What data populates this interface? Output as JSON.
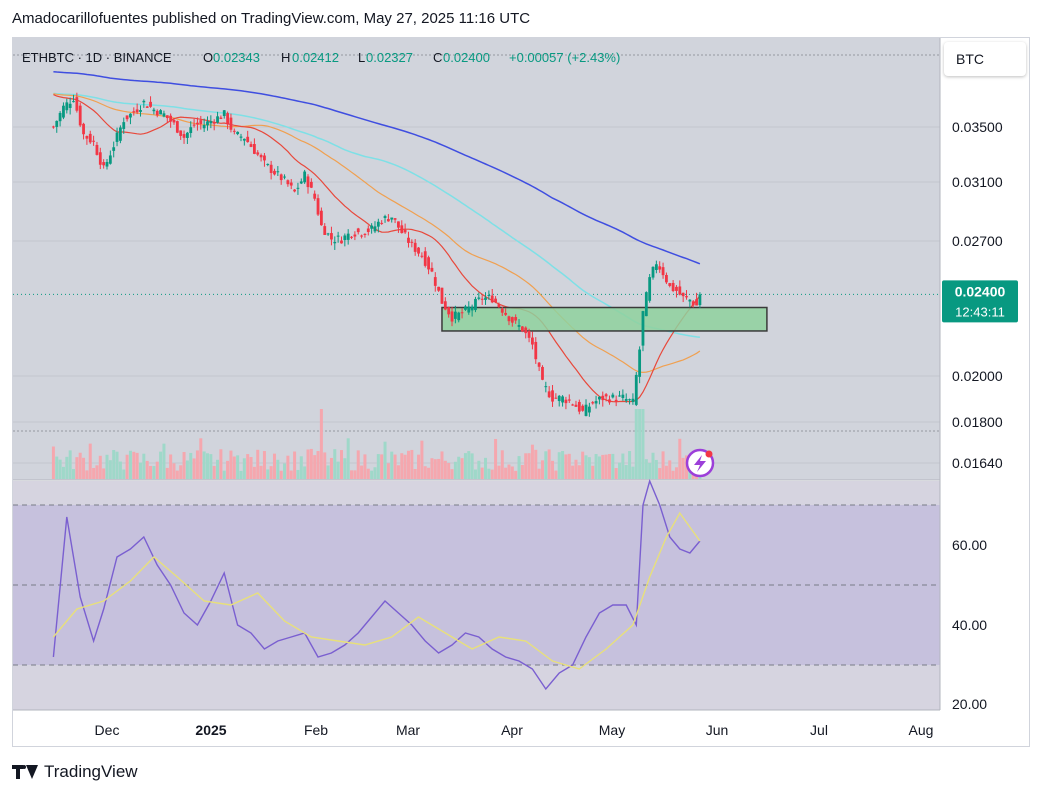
{
  "header": {
    "text": "Amadocarillofuentes published on TradingView.com, May 27, 2025 11:16 UTC"
  },
  "legend": {
    "symbol": "ETHBTC · 1D · BINANCE",
    "o_label": "O",
    "o_value": "0.02343",
    "h_label": "H",
    "h_value": "0.02412",
    "l_label": "L",
    "l_value": "0.02327",
    "c_label": "C",
    "c_value": "0.02400",
    "change": "+0.00057 (+2.43%)"
  },
  "currency_button": "BTC",
  "footer": {
    "brand": "TradingView"
  },
  "colors": {
    "bg_upper": "#d1d4dc",
    "bg_rsi": "#cfcde0",
    "rsi_band": "#c6c1dd",
    "up": "#089981",
    "down": "#f23645",
    "ma_red": "#e8483b",
    "ma_orange": "#f0a050",
    "ma_cyan": "#7ee0e6",
    "ma_blue": "#3f4ee0",
    "rsi": "#7a5fd0",
    "rsi_ma": "#e8e07a",
    "zone_fill": "#8fd19e",
    "price_label": "#089981"
  },
  "chart_data": [
    {
      "type": "candlestick",
      "title": "ETHBTC · 1D · BINANCE",
      "y_ticks": [
        "0.03500",
        "0.03100",
        "0.02700",
        "0.02000",
        "0.01800",
        "0.01640"
      ],
      "ylim": [
        0.0155,
        0.0395
      ],
      "x_ticks": [
        "Dec",
        "2025",
        "Feb",
        "Mar",
        "Apr",
        "May",
        "Jun",
        "Jul",
        "Aug"
      ],
      "last_price": "0.02400",
      "countdown": "12:43:11",
      "last_ohlc": {
        "open": 0.02343,
        "high": 0.02412,
        "low": 0.02327,
        "close": 0.024
      },
      "support_zone": {
        "top": 0.0233,
        "bottom": 0.0221,
        "start": "2025-03-11",
        "end": "2025-06-16"
      },
      "closes": [
        {
          "date": "2024-11-15",
          "close": 0.035
        },
        {
          "date": "2024-11-18",
          "close": 0.0366
        },
        {
          "date": "2024-11-21",
          "close": 0.0374
        },
        {
          "date": "2024-11-24",
          "close": 0.0344
        },
        {
          "date": "2024-11-27",
          "close": 0.0338
        },
        {
          "date": "2024-11-30",
          "close": 0.0318
        },
        {
          "date": "2024-12-03",
          "close": 0.0336
        },
        {
          "date": "2024-12-06",
          "close": 0.0356
        },
        {
          "date": "2024-12-09",
          "close": 0.0362
        },
        {
          "date": "2024-12-12",
          "close": 0.037
        },
        {
          "date": "2024-12-15",
          "close": 0.0364
        },
        {
          "date": "2024-12-18",
          "close": 0.036
        },
        {
          "date": "2024-12-21",
          "close": 0.0352
        },
        {
          "date": "2024-12-24",
          "close": 0.0342
        },
        {
          "date": "2024-12-27",
          "close": 0.0352
        },
        {
          "date": "2024-12-30",
          "close": 0.0352
        },
        {
          "date": "2025-01-02",
          "close": 0.0356
        },
        {
          "date": "2025-01-05",
          "close": 0.036
        },
        {
          "date": "2025-01-08",
          "close": 0.0344
        },
        {
          "date": "2025-01-11",
          "close": 0.0342
        },
        {
          "date": "2025-01-14",
          "close": 0.0332
        },
        {
          "date": "2025-01-17",
          "close": 0.0322
        },
        {
          "date": "2025-01-20",
          "close": 0.0316
        },
        {
          "date": "2025-01-23",
          "close": 0.031
        },
        {
          "date": "2025-01-26",
          "close": 0.0302
        },
        {
          "date": "2025-01-29",
          "close": 0.0314
        },
        {
          "date": "2025-02-01",
          "close": 0.0298
        },
        {
          "date": "2025-02-03",
          "close": 0.028
        },
        {
          "date": "2025-02-06",
          "close": 0.0272
        },
        {
          "date": "2025-02-09",
          "close": 0.0272
        },
        {
          "date": "2025-02-12",
          "close": 0.0276
        },
        {
          "date": "2025-02-15",
          "close": 0.0276
        },
        {
          "date": "2025-02-18",
          "close": 0.0278
        },
        {
          "date": "2025-02-21",
          "close": 0.0284
        },
        {
          "date": "2025-02-24",
          "close": 0.0286
        },
        {
          "date": "2025-02-27",
          "close": 0.0276
        },
        {
          "date": "2025-03-02",
          "close": 0.0268
        },
        {
          "date": "2025-03-05",
          "close": 0.0262
        },
        {
          "date": "2025-03-08",
          "close": 0.0252
        },
        {
          "date": "2025-03-11",
          "close": 0.0236
        },
        {
          "date": "2025-03-14",
          "close": 0.0228
        },
        {
          "date": "2025-03-17",
          "close": 0.023
        },
        {
          "date": "2025-03-20",
          "close": 0.0234
        },
        {
          "date": "2025-03-23",
          "close": 0.0238
        },
        {
          "date": "2025-03-26",
          "close": 0.0238
        },
        {
          "date": "2025-03-29",
          "close": 0.0232
        },
        {
          "date": "2025-04-01",
          "close": 0.0226
        },
        {
          "date": "2025-04-04",
          "close": 0.0222
        },
        {
          "date": "2025-04-07",
          "close": 0.0214
        },
        {
          "date": "2025-04-10",
          "close": 0.0196
        },
        {
          "date": "2025-04-13",
          "close": 0.019
        },
        {
          "date": "2025-04-16",
          "close": 0.019
        },
        {
          "date": "2025-04-19",
          "close": 0.0188
        },
        {
          "date": "2025-04-22",
          "close": 0.0184
        },
        {
          "date": "2025-04-25",
          "close": 0.0188
        },
        {
          "date": "2025-04-28",
          "close": 0.019
        },
        {
          "date": "2025-05-01",
          "close": 0.019
        },
        {
          "date": "2025-05-04",
          "close": 0.019
        },
        {
          "date": "2025-05-07",
          "close": 0.0188
        },
        {
          "date": "2025-05-09",
          "close": 0.0212
        },
        {
          "date": "2025-05-10",
          "close": 0.023
        },
        {
          "date": "2025-05-12",
          "close": 0.0248
        },
        {
          "date": "2025-05-14",
          "close": 0.0258
        },
        {
          "date": "2025-05-16",
          "close": 0.0252
        },
        {
          "date": "2025-05-18",
          "close": 0.0244
        },
        {
          "date": "2025-05-20",
          "close": 0.0242
        },
        {
          "date": "2025-05-22",
          "close": 0.0238
        },
        {
          "date": "2025-05-24",
          "close": 0.0237
        },
        {
          "date": "2025-05-26",
          "close": 0.0234
        },
        {
          "date": "2025-05-27",
          "close": 0.024
        }
      ]
    },
    {
      "type": "line",
      "title": "RSI",
      "y_ticks": [
        "60.00",
        "40.00",
        "20.00"
      ],
      "ylim": [
        19,
        76
      ],
      "bands": {
        "upper": 70,
        "middle": 50,
        "lower": 30
      },
      "series": [
        {
          "color": "#7a5fd0",
          "values": [
            {
              "date": "2024-11-15",
              "value": 32
            },
            {
              "date": "2024-11-19",
              "value": 67
            },
            {
              "date": "2024-11-23",
              "value": 47
            },
            {
              "date": "2024-11-27",
              "value": 36
            },
            {
              "date": "2024-11-30",
              "value": 44
            },
            {
              "date": "2024-12-04",
              "value": 57
            },
            {
              "date": "2024-12-08",
              "value": 59
            },
            {
              "date": "2024-12-12",
              "value": 62
            },
            {
              "date": "2024-12-16",
              "value": 55
            },
            {
              "date": "2024-12-20",
              "value": 50
            },
            {
              "date": "2024-12-24",
              "value": 43
            },
            {
              "date": "2024-12-28",
              "value": 40
            },
            {
              "date": "2025-01-01",
              "value": 46
            },
            {
              "date": "2025-01-05",
              "value": 53
            },
            {
              "date": "2025-01-09",
              "value": 40
            },
            {
              "date": "2025-01-13",
              "value": 38
            },
            {
              "date": "2025-01-17",
              "value": 34
            },
            {
              "date": "2025-01-21",
              "value": 36
            },
            {
              "date": "2025-01-25",
              "value": 37
            },
            {
              "date": "2025-01-29",
              "value": 38
            },
            {
              "date": "2025-02-02",
              "value": 32
            },
            {
              "date": "2025-02-06",
              "value": 33
            },
            {
              "date": "2025-02-10",
              "value": 35
            },
            {
              "date": "2025-02-14",
              "value": 38
            },
            {
              "date": "2025-02-18",
              "value": 42
            },
            {
              "date": "2025-02-22",
              "value": 46
            },
            {
              "date": "2025-02-26",
              "value": 43
            },
            {
              "date": "2025-03-02",
              "value": 40
            },
            {
              "date": "2025-03-06",
              "value": 36
            },
            {
              "date": "2025-03-10",
              "value": 33
            },
            {
              "date": "2025-03-14",
              "value": 35
            },
            {
              "date": "2025-03-18",
              "value": 38
            },
            {
              "date": "2025-03-22",
              "value": 37
            },
            {
              "date": "2025-03-26",
              "value": 34
            },
            {
              "date": "2025-03-30",
              "value": 32
            },
            {
              "date": "2025-04-03",
              "value": 31
            },
            {
              "date": "2025-04-07",
              "value": 29
            },
            {
              "date": "2025-04-11",
              "value": 24
            },
            {
              "date": "2025-04-15",
              "value": 28
            },
            {
              "date": "2025-04-19",
              "value": 30
            },
            {
              "date": "2025-04-23",
              "value": 37
            },
            {
              "date": "2025-04-27",
              "value": 43
            },
            {
              "date": "2025-05-01",
              "value": 45
            },
            {
              "date": "2025-05-05",
              "value": 45
            },
            {
              "date": "2025-05-08",
              "value": 40
            },
            {
              "date": "2025-05-10",
              "value": 70
            },
            {
              "date": "2025-05-12",
              "value": 76
            },
            {
              "date": "2025-05-15",
              "value": 70
            },
            {
              "date": "2025-05-18",
              "value": 62
            },
            {
              "date": "2025-05-21",
              "value": 59
            },
            {
              "date": "2025-05-24",
              "value": 58
            },
            {
              "date": "2025-05-27",
              "value": 61
            }
          ]
        },
        {
          "color": "#e8e07a",
          "values": [
            {
              "date": "2024-11-15",
              "value": 37
            },
            {
              "date": "2024-11-22",
              "value": 44
            },
            {
              "date": "2024-11-30",
              "value": 46
            },
            {
              "date": "2024-12-08",
              "value": 51
            },
            {
              "date": "2024-12-15",
              "value": 57
            },
            {
              "date": "2024-12-22",
              "value": 52
            },
            {
              "date": "2024-12-30",
              "value": 46
            },
            {
              "date": "2025-01-07",
              "value": 45
            },
            {
              "date": "2025-01-15",
              "value": 48
            },
            {
              "date": "2025-01-23",
              "value": 41
            },
            {
              "date": "2025-01-31",
              "value": 37
            },
            {
              "date": "2025-02-08",
              "value": 36
            },
            {
              "date": "2025-02-16",
              "value": 35
            },
            {
              "date": "2025-02-24",
              "value": 37
            },
            {
              "date": "2025-03-04",
              "value": 42
            },
            {
              "date": "2025-03-12",
              "value": 38
            },
            {
              "date": "2025-03-20",
              "value": 34
            },
            {
              "date": "2025-03-28",
              "value": 37
            },
            {
              "date": "2025-04-05",
              "value": 36
            },
            {
              "date": "2025-04-13",
              "value": 31
            },
            {
              "date": "2025-04-21",
              "value": 29
            },
            {
              "date": "2025-04-29",
              "value": 34
            },
            {
              "date": "2025-05-07",
              "value": 40
            },
            {
              "date": "2025-05-12",
              "value": 52
            },
            {
              "date": "2025-05-17",
              "value": 62
            },
            {
              "date": "2025-05-21",
              "value": 68
            },
            {
              "date": "2025-05-27",
              "value": 61
            }
          ]
        }
      ]
    }
  ]
}
